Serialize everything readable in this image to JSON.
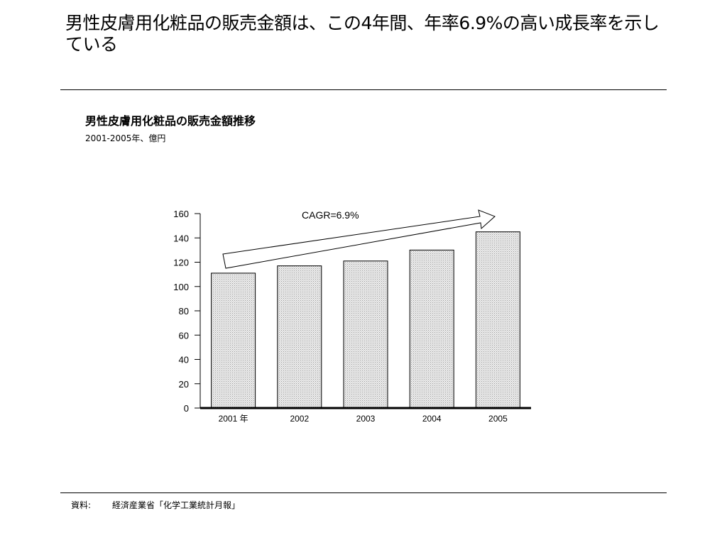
{
  "headline": "男性皮膚用化粧品の販売金額は、この4年間、年率6.9%の高い成長率を示している",
  "chart_data": {
    "type": "bar",
    "title": "男性皮膚用化粧品の販売金額推移",
    "subtitle": "2001-2005年、億円",
    "categories": [
      "2001 年",
      "2002",
      "2003",
      "2004",
      "2005"
    ],
    "values": [
      111,
      117,
      121,
      130,
      145
    ],
    "ylim": [
      0,
      160
    ],
    "yticks": [
      "0",
      "20",
      "40",
      "60",
      "80",
      "100",
      "120",
      "140",
      "160"
    ],
    "annotation": "CAGR=6.9%",
    "grid": false,
    "bar_color": "#d9d9d9",
    "bar_pattern": "dotted"
  },
  "source": {
    "label": "資料:",
    "text": "経済産業省「化学工業統計月報」"
  }
}
